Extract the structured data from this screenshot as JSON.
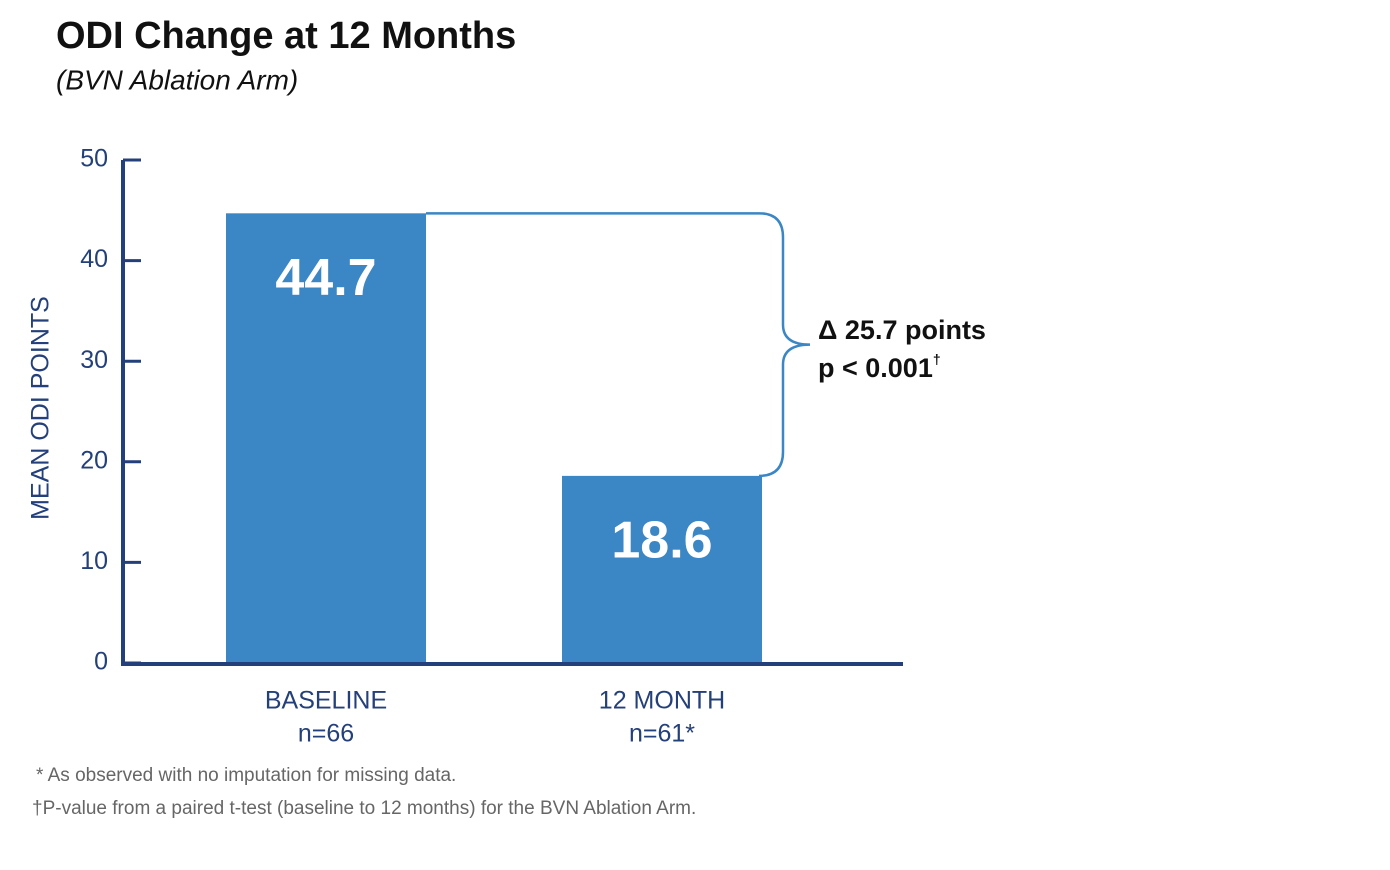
{
  "chart_data": {
    "type": "bar",
    "title": "ODI Change at 12 Months",
    "subtitle": "(BVN Ablation Arm)",
    "y_label": "MEAN ODI POINTS",
    "categories": [
      "BASELINE",
      "12 MONTH"
    ],
    "category_notes": [
      "n=66",
      "n=61*"
    ],
    "values": [
      44.7,
      18.6
    ],
    "color": "#3b86c4",
    "ylim": [
      0,
      50
    ],
    "yticks": [
      0,
      10,
      20,
      30,
      40,
      50
    ],
    "annotation": {
      "delta": "Δ 25.7 points",
      "p_value": "p < 0.001",
      "p_mark": "†"
    },
    "footnotes": [
      "* As observed with no imputation for missing data.",
      "†P-value from a paired t-test (baseline to 12 months) for the BVN Ablation Arm."
    ]
  }
}
